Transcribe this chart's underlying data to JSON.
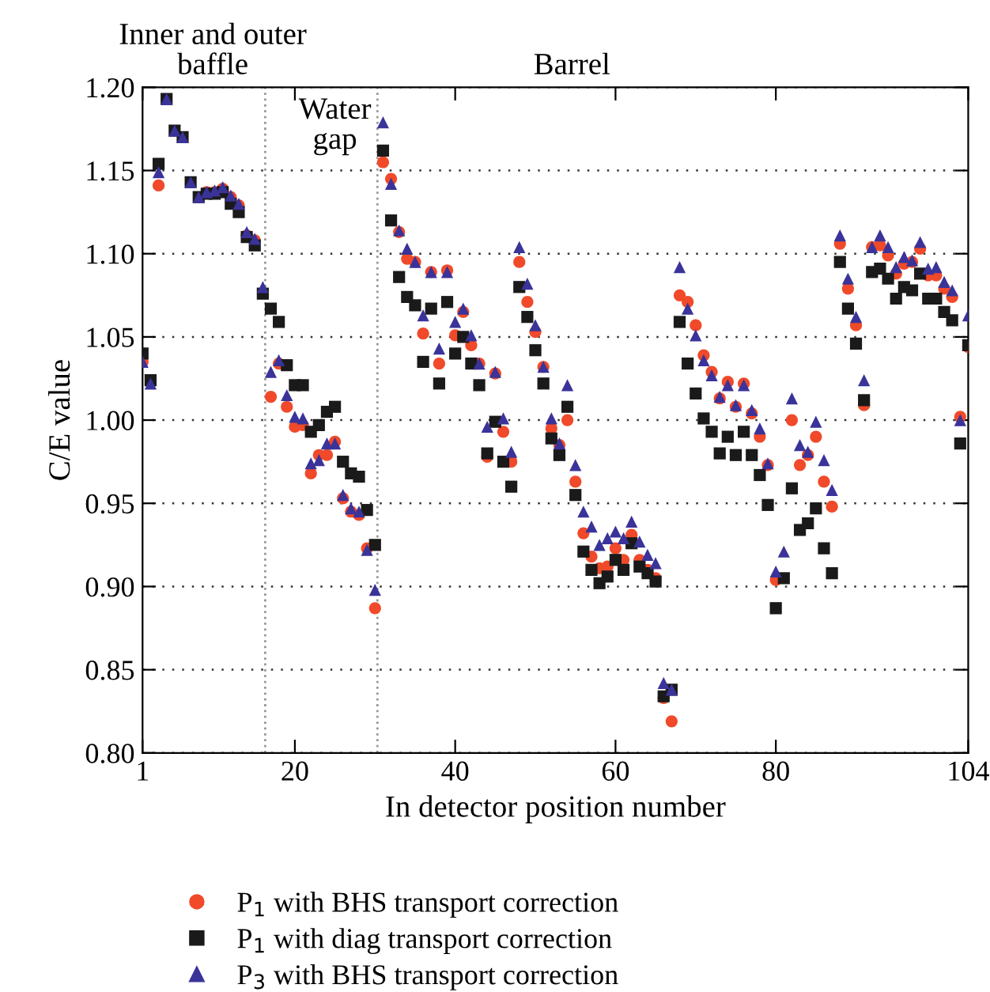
{
  "chart_data": {
    "type": "scatter",
    "xlabel": "In detector position number",
    "ylabel": "C/E value",
    "x": [
      1,
      2,
      3,
      4,
      5,
      6,
      7,
      8,
      9,
      10,
      11,
      12,
      13,
      14,
      15,
      16,
      17,
      18,
      19,
      20,
      21,
      22,
      23,
      24,
      25,
      26,
      27,
      28,
      29,
      30,
      31,
      32,
      33,
      34,
      35,
      36,
      37,
      38,
      39,
      40,
      41,
      42,
      43,
      44,
      45,
      46,
      47,
      48,
      49,
      50,
      51,
      52,
      53,
      54,
      55,
      56,
      57,
      58,
      59,
      60,
      61,
      62,
      63,
      64,
      65,
      66,
      67,
      68,
      69,
      70,
      71,
      72,
      73,
      74,
      75,
      76,
      77,
      78,
      79,
      80,
      81,
      82,
      83,
      84,
      85,
      86,
      87,
      88,
      89,
      90,
      91,
      92,
      93,
      94,
      95,
      96,
      97,
      98,
      99,
      100,
      101,
      102,
      103,
      104
    ],
    "series": [
      {
        "name": "P$_{1}$ with BHS transport correction",
        "color": "#f04a2a",
        "marker": "circle",
        "values": [
          1.035,
          null,
          1.141,
          null,
          null,
          null,
          null,
          null,
          1.137,
          1.137,
          1.139,
          1.134,
          1.129,
          1.111,
          1.108,
          null,
          1.014,
          1.034,
          1.008,
          0.996,
          0.997,
          0.968,
          0.979,
          0.979,
          0.987,
          0.953,
          0.945,
          0.943,
          0.923,
          0.887,
          1.155,
          1.145,
          1.113,
          1.097,
          1.095,
          1.052,
          1.089,
          1.034,
          1.09,
          1.051,
          1.065,
          1.045,
          1.034,
          0.978,
          1.028,
          0.993,
          0.975,
          1.095,
          1.071,
          1.053,
          1.032,
          0.995,
          0.985,
          1.0,
          0.963,
          0.932,
          0.918,
          0.911,
          0.912,
          0.923,
          0.916,
          0.931,
          0.916,
          0.91,
          0.905,
          0.833,
          0.819,
          1.075,
          1.071,
          1.057,
          1.039,
          1.029,
          1.013,
          1.023,
          1.008,
          1.022,
          1.004,
          0.99,
          0.973,
          0.904,
          null,
          1.0,
          0.973,
          0.979,
          0.99,
          0.963,
          0.948,
          1.106,
          1.079,
          1.057,
          1.009,
          1.104,
          1.105,
          1.099,
          1.088,
          1.094,
          1.095,
          1.103,
          1.087,
          1.087,
          1.079,
          1.074,
          1.002,
          1.044
        ]
      },
      {
        "name": "P$_{1}$ with diag transport correction",
        "color": "#1a1a1a",
        "marker": "square",
        "values": [
          1.04,
          1.024,
          1.154,
          1.193,
          1.174,
          1.17,
          1.143,
          1.134,
          1.136,
          1.136,
          1.137,
          1.13,
          1.125,
          1.11,
          1.105,
          1.076,
          1.067,
          1.059,
          1.033,
          1.021,
          1.021,
          0.993,
          0.997,
          1.005,
          1.008,
          0.975,
          0.968,
          0.966,
          0.946,
          0.925,
          1.162,
          1.12,
          1.086,
          1.074,
          1.069,
          1.035,
          1.067,
          1.022,
          1.071,
          1.04,
          1.05,
          1.034,
          1.021,
          0.98,
          0.999,
          0.975,
          0.96,
          1.08,
          1.062,
          1.042,
          1.022,
          0.989,
          0.979,
          1.008,
          0.955,
          0.921,
          0.91,
          0.902,
          0.906,
          0.916,
          0.91,
          0.926,
          0.912,
          0.908,
          0.903,
          0.834,
          0.838,
          1.059,
          1.034,
          1.016,
          1.001,
          0.993,
          0.98,
          0.99,
          0.979,
          0.993,
          0.979,
          0.967,
          0.949,
          0.887,
          0.905,
          0.959,
          0.934,
          0.938,
          0.947,
          0.923,
          0.908,
          1.095,
          1.067,
          1.046,
          1.012,
          1.089,
          1.091,
          1.085,
          1.073,
          1.08,
          1.078,
          1.088,
          1.073,
          1.073,
          1.065,
          1.06,
          0.986,
          1.045
        ]
      },
      {
        "name": "P$_{3}$ with BHS transport correction",
        "color": "#3a3399",
        "marker": "triangle",
        "values": [
          1.035,
          1.022,
          1.149,
          1.193,
          1.174,
          1.17,
          1.143,
          1.134,
          1.137,
          1.138,
          1.14,
          1.135,
          1.13,
          1.113,
          1.109,
          1.08,
          1.029,
          1.036,
          1.015,
          1.002,
          1.001,
          0.974,
          0.976,
          0.986,
          0.986,
          0.955,
          0.947,
          0.945,
          0.922,
          0.898,
          1.179,
          1.142,
          1.114,
          1.103,
          1.095,
          1.063,
          1.089,
          1.043,
          1.089,
          1.059,
          1.067,
          1.051,
          1.034,
          0.996,
          1.029,
          1.001,
          0.981,
          1.104,
          1.082,
          1.057,
          1.032,
          1.001,
          0.986,
          1.021,
          0.973,
          0.945,
          0.936,
          0.925,
          0.929,
          0.933,
          0.929,
          0.939,
          0.927,
          0.919,
          0.914,
          0.842,
          0.838,
          1.092,
          1.067,
          1.051,
          1.036,
          1.027,
          1.014,
          1.021,
          1.009,
          1.021,
          1.006,
          0.995,
          0.974,
          0.909,
          0.921,
          1.013,
          0.985,
          0.981,
          0.999,
          0.976,
          0.958,
          1.111,
          1.085,
          1.062,
          1.024,
          1.104,
          1.111,
          1.104,
          1.092,
          1.098,
          1.096,
          1.107,
          1.091,
          1.092,
          1.083,
          1.078,
          1.0,
          1.063
        ]
      }
    ],
    "xlim": [
      1,
      104
    ],
    "xticks": [
      1,
      20,
      40,
      60,
      80,
      104
    ],
    "ylim": [
      0.8,
      1.2
    ],
    "yticks": [
      {
        "value": 0.8,
        "label": "0.80"
      },
      {
        "value": 0.85,
        "label": "0.85"
      },
      {
        "value": 0.9,
        "label": "0.90"
      },
      {
        "value": 0.95,
        "label": "0.95"
      },
      {
        "value": 1.0,
        "label": "1.00"
      },
      {
        "value": 1.05,
        "label": "1.05"
      },
      {
        "value": 1.1,
        "label": "1.10"
      },
      {
        "value": 1.15,
        "label": "1.15"
      },
      {
        "value": 1.2,
        "label": "1.20"
      }
    ],
    "ref_lines": [
      {
        "axis": "x",
        "value": 16.3,
        "color": "#999999",
        "line_style": "dotted"
      },
      {
        "axis": "x",
        "value": 30.3,
        "color": "#999999",
        "line_style": "dotted"
      }
    ],
    "annotations": [
      "Inner and outer\nbaffle",
      "Water\ngap",
      "Barrel"
    ],
    "grid": "y",
    "legend": "bottom"
  }
}
